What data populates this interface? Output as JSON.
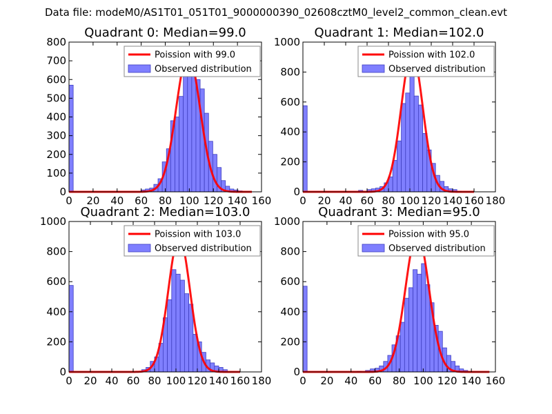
{
  "figure": {
    "suptitle": "Data file: modeM0/AS1T01_051T01_9000000390_02608cztM0_level2_common_clean.evt"
  },
  "colors": {
    "fit_line": "#ff0000",
    "bar_fill": "#7f7fff",
    "bar_edge": "#3f3fbf",
    "axes": "#000000",
    "legend_edge": "#888888"
  },
  "chart_data": [
    {
      "type": "bar",
      "title": "Quadrant 0: Median=99.0",
      "xlim": [
        0,
        160
      ],
      "ylim": [
        0,
        800
      ],
      "xticks": [
        0,
        20,
        40,
        60,
        80,
        100,
        120,
        140,
        160
      ],
      "yticks": [
        0,
        100,
        200,
        300,
        400,
        500,
        600,
        700,
        800
      ],
      "legend": {
        "line": "Poission with 99.0",
        "bars": "Observed distribution",
        "loc": "upper right"
      },
      "bin_width": 3.5,
      "bins": [
        [
          0,
          570
        ],
        [
          60,
          10
        ],
        [
          63.5,
          15
        ],
        [
          67,
          20
        ],
        [
          70.5,
          40
        ],
        [
          74,
          70
        ],
        [
          77.5,
          160
        ],
        [
          81,
          230
        ],
        [
          84.5,
          380
        ],
        [
          88,
          400
        ],
        [
          91.5,
          510
        ],
        [
          95,
          630
        ],
        [
          98.5,
          720
        ],
        [
          102,
          700
        ],
        [
          105.5,
          600
        ],
        [
          109,
          550
        ],
        [
          112.5,
          420
        ],
        [
          116,
          270
        ],
        [
          119.5,
          200
        ],
        [
          123,
          130
        ],
        [
          126.5,
          60
        ],
        [
          130,
          30
        ],
        [
          133.5,
          15
        ],
        [
          137,
          10
        ],
        [
          140.5,
          5
        ]
      ],
      "fit": {
        "mu": 99.0,
        "peak": 735,
        "x_range": [
          0,
          152
        ]
      }
    },
    {
      "type": "bar",
      "title": "Quadrant 1: Median=102.0",
      "xlim": [
        0,
        180
      ],
      "ylim": [
        0,
        1000
      ],
      "xticks": [
        0,
        20,
        40,
        60,
        80,
        100,
        120,
        140,
        160,
        180
      ],
      "yticks": [
        0,
        200,
        400,
        600,
        800,
        1000
      ],
      "legend": {
        "line": "Poission with 102.0",
        "bars": "Observed distribution",
        "loc": "upper right"
      },
      "bin_width": 4,
      "bins": [
        [
          0,
          575
        ],
        [
          52,
          10
        ],
        [
          60,
          15
        ],
        [
          64,
          20
        ],
        [
          68,
          25
        ],
        [
          72,
          35
        ],
        [
          76,
          60
        ],
        [
          80,
          100
        ],
        [
          84,
          210
        ],
        [
          88,
          340
        ],
        [
          92,
          590
        ],
        [
          96,
          660
        ],
        [
          100,
          850
        ],
        [
          104,
          640
        ],
        [
          108,
          580
        ],
        [
          112,
          390
        ],
        [
          116,
          280
        ],
        [
          120,
          190
        ],
        [
          124,
          110
        ],
        [
          128,
          70
        ],
        [
          132,
          35
        ],
        [
          136,
          20
        ],
        [
          140,
          15
        ],
        [
          144,
          5
        ]
      ],
      "fit": {
        "mu": 102.0,
        "peak": 930,
        "x_range": [
          0,
          160
        ]
      }
    },
    {
      "type": "bar",
      "title": "Quadrant 2: Median=103.0",
      "xlim": [
        0,
        180
      ],
      "ylim": [
        0,
        1000
      ],
      "xticks": [
        0,
        20,
        40,
        60,
        80,
        100,
        120,
        140,
        160,
        180
      ],
      "yticks": [
        0,
        200,
        400,
        600,
        800,
        1000
      ],
      "legend": {
        "line": "Poission with 103.0",
        "bars": "Observed distribution",
        "loc": "upper right"
      },
      "bin_width": 4,
      "bins": [
        [
          0,
          575
        ],
        [
          68,
          15
        ],
        [
          72,
          30
        ],
        [
          76,
          70
        ],
        [
          80,
          100
        ],
        [
          84,
          190
        ],
        [
          88,
          360
        ],
        [
          92,
          480
        ],
        [
          96,
          680
        ],
        [
          100,
          650
        ],
        [
          104,
          610
        ],
        [
          108,
          520
        ],
        [
          112,
          450
        ],
        [
          116,
          250
        ],
        [
          120,
          200
        ],
        [
          124,
          130
        ],
        [
          128,
          80
        ],
        [
          132,
          60
        ],
        [
          136,
          40
        ],
        [
          140,
          30
        ],
        [
          144,
          15
        ]
      ],
      "fit": {
        "mu": 103.0,
        "peak": 895,
        "x_range": [
          0,
          160
        ]
      }
    },
    {
      "type": "bar",
      "title": "Quadrant 3: Median=95.0",
      "xlim": [
        0,
        160
      ],
      "ylim": [
        0,
        1000
      ],
      "xticks": [
        0,
        20,
        40,
        60,
        80,
        100,
        120,
        140,
        160
      ],
      "yticks": [
        0,
        200,
        400,
        600,
        800,
        1000
      ],
      "legend": {
        "line": "Poission with 95.0",
        "bars": "Observed distribution",
        "loc": "upper right"
      },
      "bin_width": 3.5,
      "bins": [
        [
          0,
          570
        ],
        [
          45,
          5
        ],
        [
          52,
          10
        ],
        [
          56,
          20
        ],
        [
          60,
          25
        ],
        [
          63.5,
          40
        ],
        [
          67,
          70
        ],
        [
          70.5,
          110
        ],
        [
          74,
          180
        ],
        [
          77.5,
          240
        ],
        [
          81,
          330
        ],
        [
          84.5,
          490
        ],
        [
          88,
          560
        ],
        [
          91.5,
          680
        ],
        [
          95,
          650
        ],
        [
          98.5,
          720
        ],
        [
          102,
          580
        ],
        [
          105.5,
          460
        ],
        [
          109,
          310
        ],
        [
          112.5,
          270
        ],
        [
          116,
          160
        ],
        [
          119.5,
          110
        ],
        [
          123,
          70
        ],
        [
          126.5,
          40
        ],
        [
          130,
          20
        ],
        [
          133.5,
          10
        ]
      ],
      "fit": {
        "mu": 95.0,
        "peak": 920,
        "x_range": [
          0,
          155
        ]
      }
    }
  ]
}
